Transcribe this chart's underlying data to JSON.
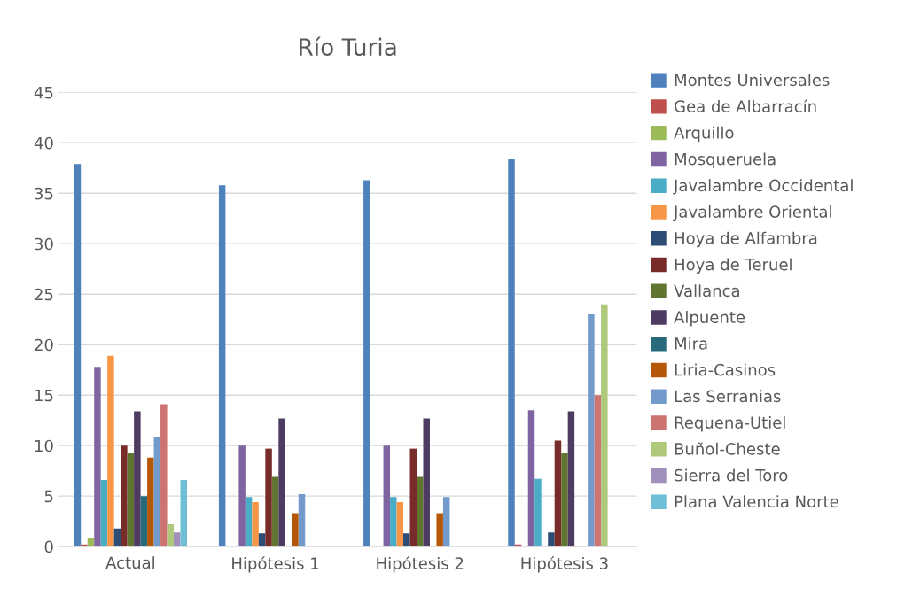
{
  "chart_data": {
    "type": "bar",
    "title": "Río Turia",
    "categories": [
      "Actual",
      "Hipótesis 1",
      "Hipótesis 2",
      "Hipótesis 3"
    ],
    "series": [
      {
        "name": "Montes Universales",
        "color": "#4f81bd",
        "values": [
          37.9,
          35.8,
          36.3,
          38.4
        ]
      },
      {
        "name": "Gea de Albarracín",
        "color": "#c0504d",
        "values": [
          0.2,
          0,
          0,
          0.2
        ]
      },
      {
        "name": "Arquillo",
        "color": "#9bbb59",
        "values": [
          0.8,
          0,
          0,
          0
        ]
      },
      {
        "name": "Mosqueruela",
        "color": "#8064a2",
        "values": [
          17.8,
          10,
          10,
          13.5
        ]
      },
      {
        "name": "Javalambre Occidental",
        "color": "#4bacc6",
        "values": [
          6.6,
          4.9,
          4.9,
          6.7
        ]
      },
      {
        "name": "Javalambre Oriental",
        "color": "#f79646",
        "values": [
          18.9,
          4.4,
          4.4,
          0
        ]
      },
      {
        "name": "Hoya de Alfambra",
        "color": "#2c4d75",
        "values": [
          1.8,
          1.3,
          1.3,
          1.4
        ]
      },
      {
        "name": "Hoya de Teruel",
        "color": "#772c2a",
        "values": [
          10,
          9.7,
          9.7,
          10.5
        ]
      },
      {
        "name": "Vallanca",
        "color": "#5f7530",
        "values": [
          9.3,
          6.9,
          6.9,
          9.3
        ]
      },
      {
        "name": "Alpuente",
        "color": "#4d3b62",
        "values": [
          13.4,
          12.7,
          12.7,
          13.4
        ]
      },
      {
        "name": "Mira",
        "color": "#276a7c",
        "values": [
          5,
          0,
          0,
          0
        ]
      },
      {
        "name": "Liria-Casinos",
        "color": "#b65708",
        "values": [
          8.8,
          3.3,
          3.3,
          0
        ]
      },
      {
        "name": "Las Serranias",
        "color": "#729aca",
        "values": [
          10.9,
          5.2,
          4.9,
          23
        ]
      },
      {
        "name": "Requena-Utiel",
        "color": "#cd7371",
        "values": [
          14.1,
          0,
          0,
          15
        ]
      },
      {
        "name": "Buñol-Cheste",
        "color": "#afc97a",
        "values": [
          2.2,
          0,
          0,
          24
        ]
      },
      {
        "name": "Sierra del Toro",
        "color": "#a18fbb",
        "values": [
          1.4,
          0,
          0,
          0
        ]
      },
      {
        "name": "Plana Valencia Norte",
        "color": "#6ebed6",
        "values": [
          6.6,
          0,
          0,
          0
        ]
      }
    ],
    "ylim": [
      0,
      45
    ],
    "yticks": [
      0,
      5,
      10,
      15,
      20,
      25,
      30,
      35,
      40,
      45
    ],
    "grid": "y",
    "legend": "right"
  }
}
